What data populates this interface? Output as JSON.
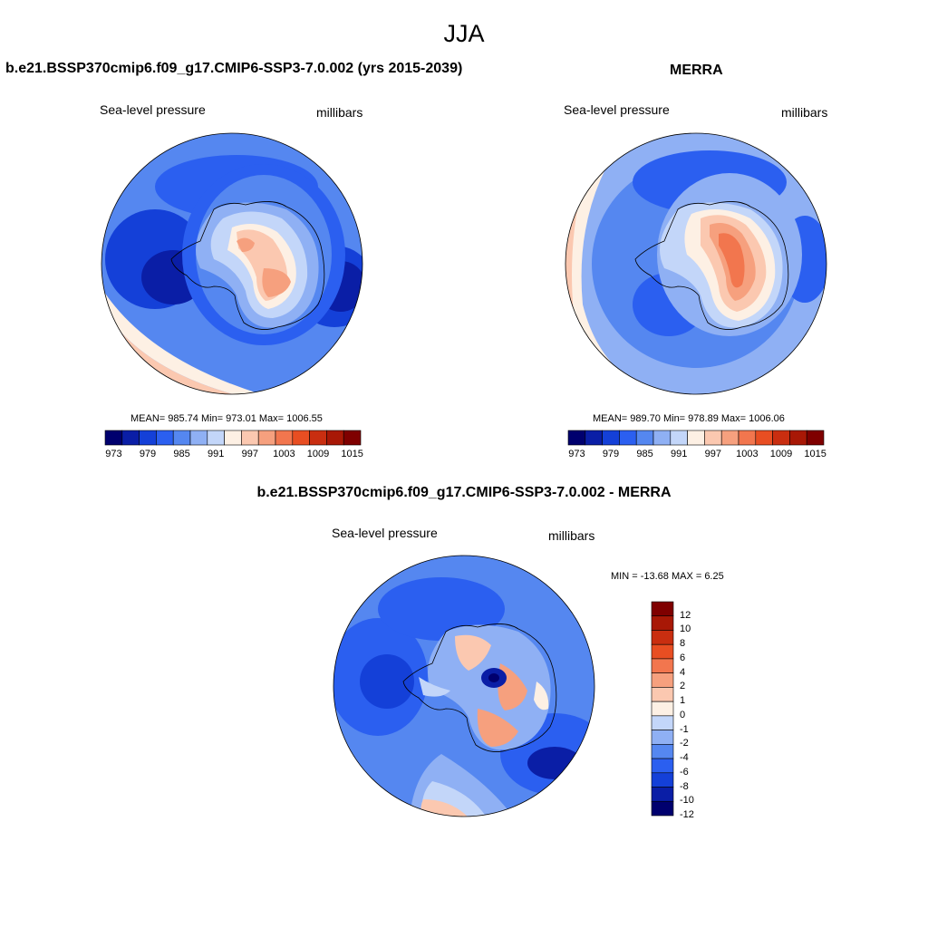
{
  "title": "JJA",
  "panels": [
    {
      "id": "model",
      "title": "b.e21.BSSP370cmip6.f09_g17.CMIP6-SSP3-7.0.002 (yrs 2015-2039)",
      "left_label": "Sea-level pressure",
      "right_label": "millibars",
      "stats": "MEAN= 985.74  Min= 973.01  Max= 1006.55"
    },
    {
      "id": "obs",
      "title": "MERRA",
      "left_label": "Sea-level pressure",
      "right_label": "millibars",
      "stats": "MEAN= 989.70  Min= 978.89  Max= 1006.06"
    },
    {
      "id": "diff",
      "title": "b.e21.BSSP370cmip6.f09_g17.CMIP6-SSP3-7.0.002 - MERRA",
      "left_label": "Sea-level pressure",
      "right_label": "millibars",
      "stats": "MIN = -13.68 MAX =   6.25"
    }
  ],
  "colorbar_abs": {
    "colors": [
      "#00006e",
      "#0a1ea6",
      "#1440d8",
      "#2b5ff0",
      "#5587f0",
      "#8fb0f4",
      "#c3d6f9",
      "#fdf0e4",
      "#fbc8b0",
      "#f6a07e",
      "#f2764e",
      "#e84e22",
      "#c92e10",
      "#a81806",
      "#7f0000"
    ],
    "ticks": [
      "973",
      "979",
      "985",
      "991",
      "997",
      "1003",
      "1009",
      "1015"
    ]
  },
  "colorbar_diff": {
    "colors": [
      "#00006e",
      "#0a1ea6",
      "#1440d8",
      "#2b5ff0",
      "#5587f0",
      "#8fb0f4",
      "#c3d6f9",
      "#fdf0e4",
      "#fbc8b0",
      "#f6a07e",
      "#f2764e",
      "#e84e22",
      "#c92e10",
      "#a81806",
      "#7f0000"
    ],
    "ticks": [
      "12",
      "10",
      "8",
      "6",
      "4",
      "2",
      "1",
      "0",
      "-1",
      "-2",
      "-4",
      "-6",
      "-8",
      "-10",
      "-12"
    ]
  }
}
